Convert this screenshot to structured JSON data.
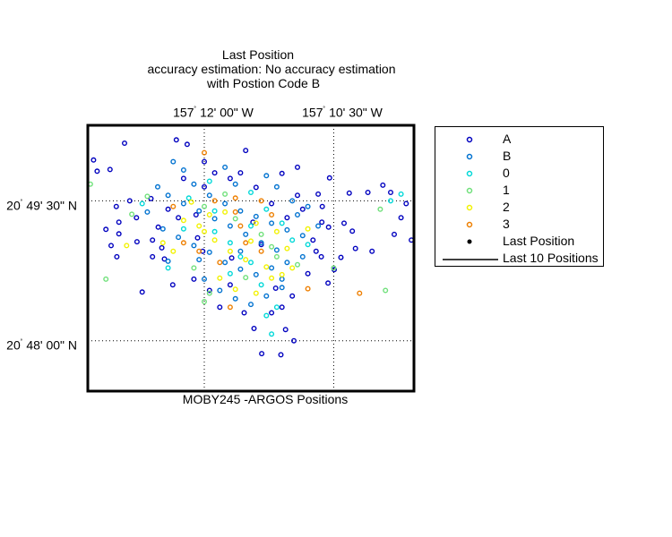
{
  "chart_data": {
    "type": "scatter",
    "title": [
      "Last Position",
      "accuracy estimation: No accuracy estimation",
      "with Postion Code B"
    ],
    "xlabel": "MOBY245 -ARGOS Positions",
    "x_ticks": [
      {
        "deg": "157",
        "min": "12' 00\" W",
        "value": -157.2
      },
      {
        "deg": "157",
        "min": "10' 30\" W",
        "value": -157.175
      }
    ],
    "y_ticks": [
      {
        "deg": "20",
        "min": "49' 30\" N",
        "value": 20.825
      },
      {
        "deg": "20",
        "min": "48' 00\" N",
        "value": 20.8
      }
    ],
    "xlim": [
      -157.2225,
      -157.1595
    ],
    "ylim": [
      20.791,
      20.8385
    ],
    "grid": "dotted at tick positions",
    "legend_position": "right, outside axes",
    "legend": [
      {
        "label": "A",
        "color": "#0000bf",
        "marker": "circle"
      },
      {
        "label": "B",
        "color": "#0072d0",
        "marker": "circle"
      },
      {
        "label": "0",
        "color": "#00d8d8",
        "marker": "circle"
      },
      {
        "label": "1",
        "color": "#6fe07a",
        "marker": "circle"
      },
      {
        "label": "2",
        "color": "#f2f200",
        "marker": "circle"
      },
      {
        "label": "3",
        "color": "#ee7f00",
        "marker": "circle"
      },
      {
        "label": "Last Position",
        "color": "#000000",
        "marker": "dot"
      },
      {
        "label": "Last 10 Positions",
        "color": "#000000",
        "marker": "line"
      }
    ],
    "series": [
      {
        "name": "A",
        "color": "#0000bf",
        "points": [
          [
            -157.2154,
            20.8353
          ],
          [
            -157.2054,
            20.8359
          ],
          [
            -157.2033,
            20.8351
          ],
          [
            -157.2182,
            20.8306
          ],
          [
            -157.2207,
            20.8303
          ],
          [
            -157.2214,
            20.8323
          ],
          [
            -157.2144,
            20.825
          ],
          [
            -157.2131,
            20.822
          ],
          [
            -157.21,
            20.815
          ],
          [
            -157.2077,
            20.8146
          ],
          [
            -157.2082,
            20.8166
          ],
          [
            -157.21,
            20.818
          ],
          [
            -157.2089,
            20.8203
          ],
          [
            -157.217,
            20.824
          ],
          [
            -157.2165,
            20.8191
          ],
          [
            -157.2165,
            20.8212
          ],
          [
            -157.219,
            20.8199
          ],
          [
            -157.2169,
            20.815
          ],
          [
            -157.218,
            20.817
          ],
          [
            -157.212,
            20.8087
          ],
          [
            -157.2061,
            20.81
          ],
          [
            -157.2016,
            20.8225
          ],
          [
            -157.2013,
            20.8184
          ],
          [
            -157.2003,
            20.816
          ],
          [
            -157.1947,
            20.8148
          ],
          [
            -157.1906,
            20.8212
          ],
          [
            -157.189,
            20.8172
          ],
          [
            -157.1862,
            20.8094
          ],
          [
            -157.185,
            20.806
          ],
          [
            -157.187,
            20.805
          ],
          [
            -157.183,
            20.808
          ],
          [
            -157.1774,
            20.815
          ],
          [
            -157.1761,
            20.8103
          ],
          [
            -157.1772,
            20.824
          ],
          [
            -157.1758,
            20.8291
          ],
          [
            -157.172,
            20.8264
          ],
          [
            -157.1655,
            20.8278
          ],
          [
            -157.164,
            20.8265
          ],
          [
            -157.161,
            20.8245
          ],
          [
            -157.162,
            20.822
          ],
          [
            -157.1633,
            20.819
          ],
          [
            -157.1676,
            20.816
          ],
          [
            -157.16,
            20.818
          ],
          [
            -157.1773,
            20.8212
          ],
          [
            -157.176,
            20.8203
          ],
          [
            -157.1784,
            20.816
          ],
          [
            -157.1749,
            20.8127
          ],
          [
            -157.1736,
            20.8149
          ],
          [
            -157.1708,
            20.8165
          ],
          [
            -157.1714,
            20.8196
          ],
          [
            -157.1684,
            20.8265
          ],
          [
            -157.1904,
            20.8022
          ],
          [
            -157.1889,
            20.7977
          ],
          [
            -157.1827,
            20.8
          ],
          [
            -157.1852,
            20.7975
          ],
          [
            -157.1843,
            20.802
          ],
          [
            -157.1923,
            20.805
          ],
          [
            -157.197,
            20.806
          ],
          [
            -157.199,
            20.809
          ],
          [
            -157.185,
            20.8299
          ],
          [
            -157.182,
            20.826
          ],
          [
            -157.2103,
            20.8254
          ],
          [
            -157.207,
            20.8235
          ],
          [
            -157.205,
            20.822
          ],
          [
            -157.2,
            20.8275
          ],
          [
            -157.198,
            20.83
          ],
          [
            -157.195,
            20.829
          ],
          [
            -157.193,
            20.83
          ],
          [
            -157.19,
            20.8274
          ],
          [
            -157.187,
            20.8245
          ],
          [
            -157.184,
            20.822
          ],
          [
            -157.181,
            20.8235
          ],
          [
            -157.178,
            20.8262
          ],
          [
            -157.213,
            20.8177
          ],
          [
            -157.202,
            20.811
          ],
          [
            -157.195,
            20.81
          ],
          [
            -157.18,
            20.812
          ],
          [
            -157.179,
            20.818
          ],
          [
            -157.173,
            20.821
          ],
          [
            -157.204,
            20.829
          ],
          [
            -157.192,
            20.834
          ],
          [
            -157.2,
            20.832
          ],
          [
            -157.182,
            20.831
          ]
        ]
      },
      {
        "name": "B",
        "color": "#0072d0",
        "points": [
          [
            -157.206,
            20.832
          ],
          [
            -157.204,
            20.8305
          ],
          [
            -157.202,
            20.828
          ],
          [
            -157.199,
            20.826
          ],
          [
            -157.196,
            20.8245
          ],
          [
            -157.193,
            20.8232
          ],
          [
            -157.19,
            20.8222
          ],
          [
            -157.187,
            20.821
          ],
          [
            -157.184,
            20.8198
          ],
          [
            -157.181,
            20.8188
          ],
          [
            -157.178,
            20.8205
          ],
          [
            -157.208,
            20.82
          ],
          [
            -157.205,
            20.8185
          ],
          [
            -157.202,
            20.817
          ],
          [
            -157.199,
            20.8158
          ],
          [
            -157.196,
            20.814
          ],
          [
            -157.193,
            20.8128
          ],
          [
            -157.19,
            20.8118
          ],
          [
            -157.187,
            20.813
          ],
          [
            -157.184,
            20.814
          ],
          [
            -157.181,
            20.815
          ],
          [
            -157.2,
            20.811
          ],
          [
            -157.197,
            20.809
          ],
          [
            -157.194,
            20.8075
          ],
          [
            -157.191,
            20.8065
          ],
          [
            -157.188,
            20.808
          ],
          [
            -157.185,
            20.8095
          ],
          [
            -157.207,
            20.826
          ],
          [
            -157.204,
            20.8245
          ],
          [
            -157.201,
            20.8232
          ],
          [
            -157.198,
            20.8218
          ],
          [
            -157.195,
            20.8205
          ],
          [
            -157.192,
            20.819
          ],
          [
            -157.189,
            20.8175
          ],
          [
            -157.186,
            20.8162
          ],
          [
            -157.183,
            20.825
          ],
          [
            -157.18,
            20.824
          ],
          [
            -157.211,
            20.823
          ],
          [
            -157.209,
            20.8275
          ],
          [
            -157.196,
            20.831
          ],
          [
            -157.188,
            20.8295
          ],
          [
            -157.186,
            20.8275
          ],
          [
            -157.194,
            20.828
          ],
          [
            -157.201,
            20.8145
          ],
          [
            -157.193,
            20.816
          ],
          [
            -157.185,
            20.811
          ],
          [
            -157.182,
            20.8225
          ],
          [
            -157.207,
            20.8142
          ]
        ]
      },
      {
        "name": "0",
        "color": "#00d8d8",
        "points": [
          [
            -157.212,
            20.8245
          ],
          [
            -157.203,
            20.8255
          ],
          [
            -157.198,
            20.8195
          ],
          [
            -157.195,
            20.8175
          ],
          [
            -157.191,
            20.8205
          ],
          [
            -157.188,
            20.8235
          ],
          [
            -157.183,
            20.818
          ],
          [
            -157.195,
            20.812
          ],
          [
            -157.189,
            20.81
          ],
          [
            -157.186,
            20.806
          ],
          [
            -157.188,
            20.8045
          ],
          [
            -157.187,
            20.8012
          ],
          [
            -157.191,
            20.814
          ],
          [
            -157.204,
            20.82
          ],
          [
            -157.198,
            20.8232
          ],
          [
            -157.18,
            20.8172
          ],
          [
            -157.164,
            20.825
          ],
          [
            -157.162,
            20.8262
          ],
          [
            -157.207,
            20.813
          ],
          [
            -157.191,
            20.8265
          ],
          [
            -157.185,
            20.821
          ],
          [
            -157.199,
            20.8285
          ],
          [
            -157.193,
            20.815
          ]
        ]
      },
      {
        "name": "1",
        "color": "#6fe07a",
        "points": [
          [
            -157.222,
            20.828
          ],
          [
            -157.214,
            20.8226
          ],
          [
            -157.211,
            20.8258
          ],
          [
            -157.2,
            20.824
          ],
          [
            -157.194,
            20.8218
          ],
          [
            -157.189,
            20.819
          ],
          [
            -157.186,
            20.815
          ],
          [
            -157.182,
            20.8136
          ],
          [
            -157.202,
            20.813
          ],
          [
            -157.199,
            20.8085
          ],
          [
            -157.2,
            20.807
          ],
          [
            -157.219,
            20.811
          ],
          [
            -157.166,
            20.8235
          ],
          [
            -157.165,
            20.809
          ],
          [
            -157.196,
            20.8262
          ],
          [
            -157.187,
            20.8168
          ],
          [
            -157.192,
            20.8113
          ],
          [
            -157.175,
            20.813
          ]
        ]
      },
      {
        "name": "2",
        "color": "#f2f200",
        "points": [
          [
            -157.201,
            20.8205
          ],
          [
            -157.198,
            20.818
          ],
          [
            -157.195,
            20.816
          ],
          [
            -157.204,
            20.8215
          ],
          [
            -157.192,
            20.8145
          ],
          [
            -157.188,
            20.8132
          ],
          [
            -157.185,
            20.8118
          ],
          [
            -157.183,
            20.813
          ],
          [
            -157.208,
            20.8175
          ],
          [
            -157.199,
            20.8225
          ],
          [
            -157.196,
            20.823
          ],
          [
            -157.19,
            20.821
          ],
          [
            -157.186,
            20.8195
          ],
          [
            -157.197,
            20.8112
          ],
          [
            -157.19,
            20.8085
          ],
          [
            -157.2,
            20.8195
          ],
          [
            -157.206,
            20.816
          ],
          [
            -157.184,
            20.8165
          ],
          [
            -157.18,
            20.82
          ],
          [
            -157.191,
            20.8178
          ],
          [
            -157.215,
            20.817
          ],
          [
            -157.194,
            20.8092
          ],
          [
            -157.2025,
            20.8248
          ],
          [
            -157.187,
            20.8112
          ]
        ]
      },
      {
        "name": "3",
        "color": "#ee7f00",
        "points": [
          [
            -157.2,
            20.8336
          ],
          [
            -157.198,
            20.825
          ],
          [
            -157.194,
            20.8255
          ],
          [
            -157.193,
            20.8205
          ],
          [
            -157.189,
            20.825
          ],
          [
            -157.204,
            20.8175
          ],
          [
            -157.201,
            20.816
          ],
          [
            -157.192,
            20.8175
          ],
          [
            -157.197,
            20.814
          ],
          [
            -157.195,
            20.806
          ],
          [
            -157.189,
            20.816
          ],
          [
            -157.194,
            20.823
          ],
          [
            -157.187,
            20.8225
          ],
          [
            -157.17,
            20.8085
          ],
          [
            -157.18,
            20.8093
          ],
          [
            -157.206,
            20.824
          ]
        ]
      }
    ]
  }
}
